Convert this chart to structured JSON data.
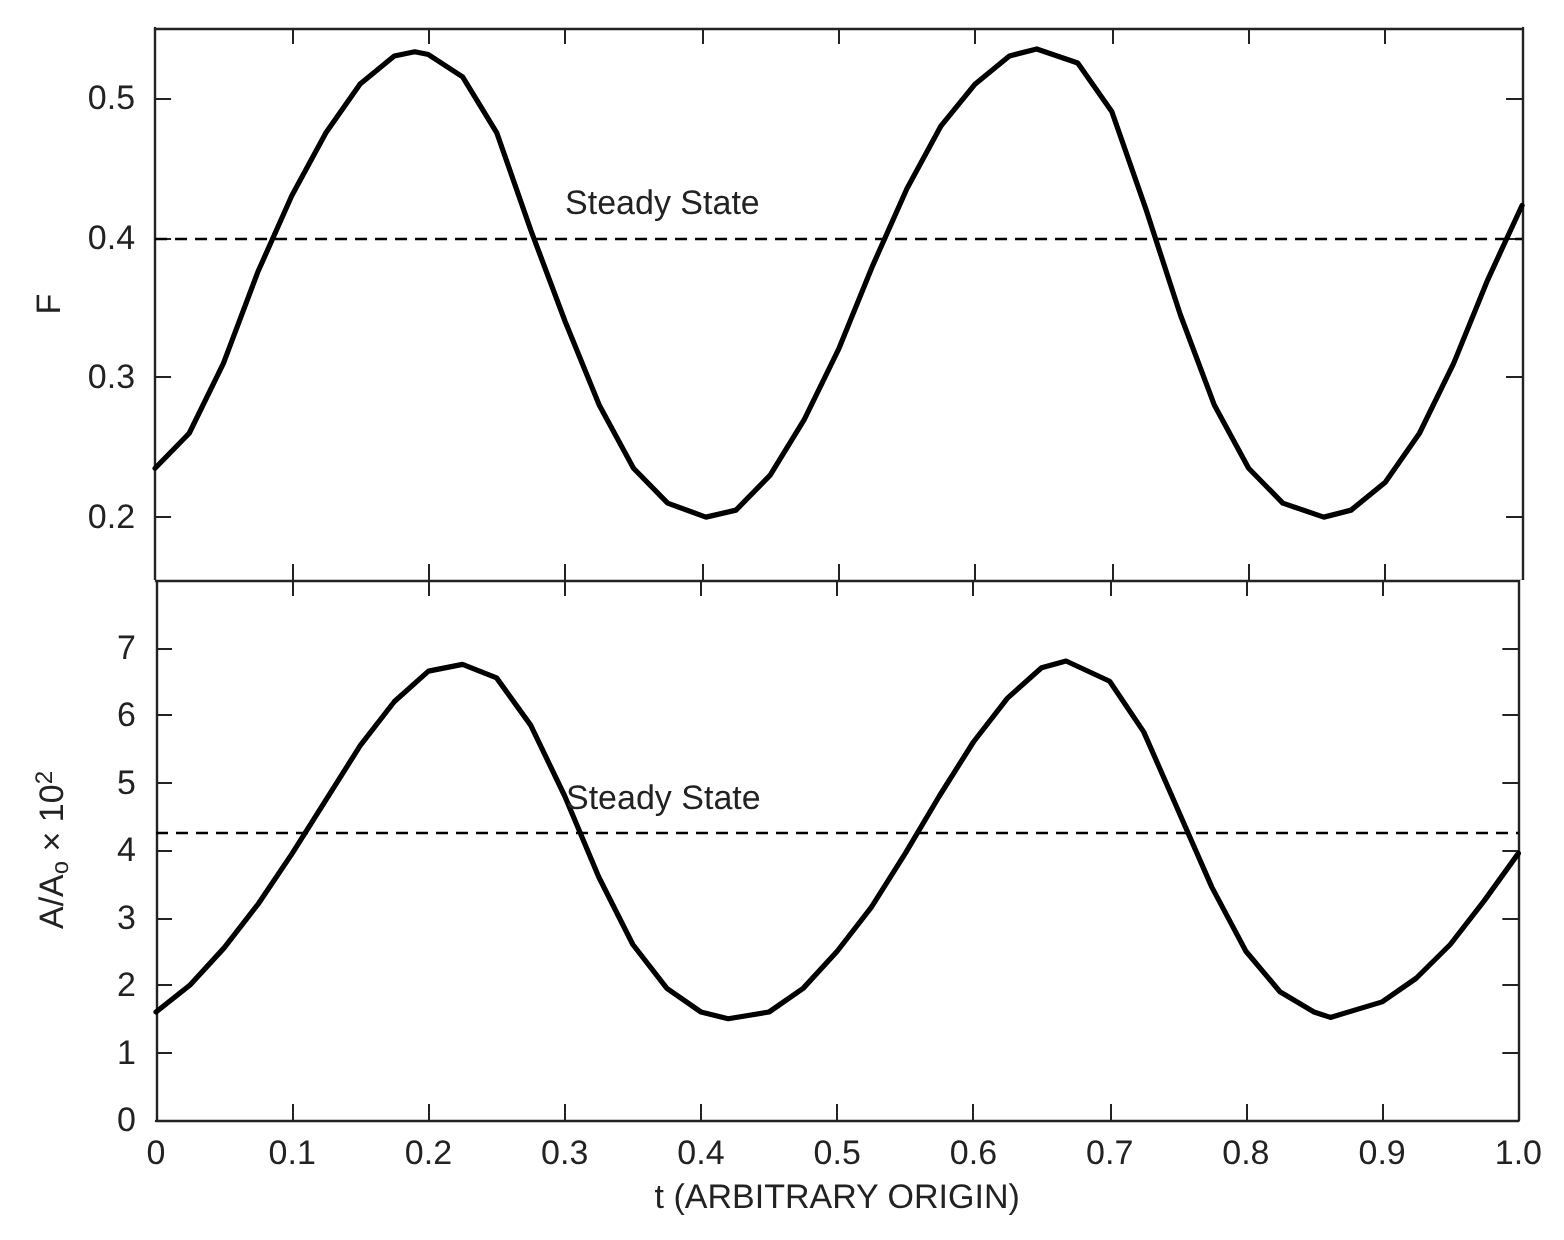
{
  "chart_data": [
    {
      "type": "line",
      "ylabel": "F",
      "tick_labels": "y",
      "grid": false,
      "line_style": "solid",
      "marker": "none",
      "xlim": [
        0,
        1
      ],
      "xticks": [
        0.1,
        0.2,
        0.3,
        0.4,
        0.5,
        0.6,
        0.7,
        0.8,
        0.9
      ],
      "ylim": [
        0.155,
        0.55
      ],
      "yticks": [
        0.2,
        0.3,
        0.4,
        0.5
      ],
      "ref_lines": [
        {
          "axis": "y",
          "value": 0.4,
          "label": "Steady State",
          "color": "#000000",
          "line_style": "dashed"
        }
      ],
      "series": [
        {
          "color": "#000000",
          "x": [
            0,
            0.025,
            0.05,
            0.075,
            0.1,
            0.125,
            0.15,
            0.175,
            0.19,
            0.2,
            0.225,
            0.25,
            0.275,
            0.3,
            0.325,
            0.35,
            0.375,
            0.403,
            0.425,
            0.45,
            0.475,
            0.5,
            0.525,
            0.55,
            0.575,
            0.6,
            0.625,
            0.645,
            0.675,
            0.7,
            0.725,
            0.75,
            0.775,
            0.8,
            0.825,
            0.855,
            0.875,
            0.9,
            0.925,
            0.95,
            0.975,
            1.0
          ],
          "values": [
            0.235,
            0.26,
            0.31,
            0.375,
            0.43,
            0.475,
            0.51,
            0.53,
            0.533,
            0.531,
            0.515,
            0.475,
            0.405,
            0.34,
            0.28,
            0.235,
            0.21,
            0.2,
            0.205,
            0.23,
            0.27,
            0.32,
            0.38,
            0.435,
            0.48,
            0.51,
            0.53,
            0.535,
            0.525,
            0.49,
            0.42,
            0.345,
            0.28,
            0.235,
            0.21,
            0.2,
            0.205,
            0.225,
            0.26,
            0.31,
            0.37,
            0.423
          ]
        }
      ]
    },
    {
      "type": "line",
      "xlabel": "t (ARBITRARY ORIGIN)",
      "ylabel": "A/A$_{o}$ × 10$^{2}$",
      "grid": false,
      "line_style": "solid",
      "marker": "none",
      "xlim": [
        0,
        1
      ],
      "xticks": [
        0,
        0.1,
        0.2,
        0.3,
        0.4,
        0.5,
        0.6,
        0.7,
        0.8,
        0.9,
        {
          "value": 1,
          "label": "1.0"
        }
      ],
      "ylim": [
        0,
        8
      ],
      "yticks": [
        0,
        1,
        2,
        3,
        4,
        5,
        6,
        7
      ],
      "ref_lines": [
        {
          "axis": "y",
          "value": 4.25,
          "label": "Steady State",
          "color": "#000000",
          "line_style": "dashed"
        }
      ],
      "series": [
        {
          "color": "#000000",
          "x": [
            0,
            0.025,
            0.05,
            0.075,
            0.1,
            0.125,
            0.15,
            0.175,
            0.2,
            0.225,
            0.25,
            0.275,
            0.3,
            0.325,
            0.35,
            0.375,
            0.4,
            0.42,
            0.45,
            0.475,
            0.5,
            0.525,
            0.55,
            0.575,
            0.6,
            0.625,
            0.65,
            0.668,
            0.7,
            0.725,
            0.75,
            0.775,
            0.8,
            0.825,
            0.85,
            0.862,
            0.9,
            0.925,
            0.95,
            0.975,
            1.0
          ],
          "values": [
            1.6,
            2.0,
            2.55,
            3.2,
            3.95,
            4.75,
            5.55,
            6.2,
            6.65,
            6.75,
            6.55,
            5.85,
            4.8,
            3.6,
            2.6,
            1.95,
            1.6,
            1.5,
            1.6,
            1.95,
            2.5,
            3.15,
            3.95,
            4.8,
            5.6,
            6.25,
            6.7,
            6.8,
            6.5,
            5.75,
            4.6,
            3.45,
            2.5,
            1.9,
            1.6,
            1.52,
            1.75,
            2.1,
            2.6,
            3.25,
            3.95
          ]
        }
      ]
    }
  ]
}
